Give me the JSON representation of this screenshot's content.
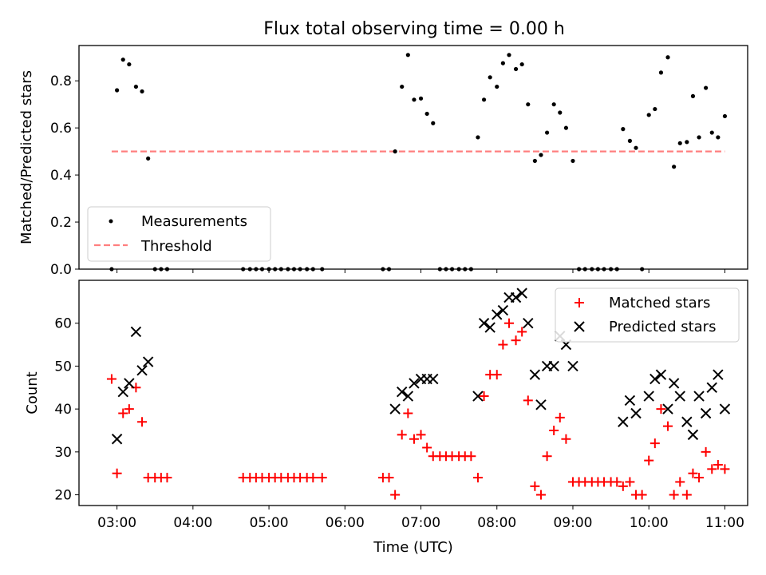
{
  "chart_data": [
    {
      "type": "scatter",
      "title": "Flux total observing time = 0.00 h",
      "xlabel": "",
      "ylabel": "Matched/Predicted stars",
      "ylim": [
        0,
        0.95
      ],
      "yticks": [
        0.0,
        0.2,
        0.4,
        0.6,
        0.8
      ],
      "ytick_labels": [
        "0.0",
        "0.2",
        "0.4",
        "0.6",
        "0.8"
      ],
      "legend_position": "lower-left",
      "series": [
        {
          "name": "Measurements",
          "color": "#000000",
          "marker": "dot",
          "points": [
            [
              2.93,
              0
            ],
            [
              3.0,
              0.76
            ],
            [
              3.08,
              0.89
            ],
            [
              3.16,
              0.87
            ],
            [
              3.25,
              0.775
            ],
            [
              3.33,
              0.755
            ],
            [
              3.41,
              0.47
            ],
            [
              3.5,
              0
            ],
            [
              3.58,
              0
            ],
            [
              3.66,
              0
            ],
            [
              4.66,
              0
            ],
            [
              4.75,
              0
            ],
            [
              4.83,
              0
            ],
            [
              4.91,
              0
            ],
            [
              5.0,
              0
            ],
            [
              5.08,
              0
            ],
            [
              5.16,
              0
            ],
            [
              5.25,
              0
            ],
            [
              5.33,
              0
            ],
            [
              5.41,
              0
            ],
            [
              5.5,
              0
            ],
            [
              5.58,
              0
            ],
            [
              5.7,
              0
            ],
            [
              6.5,
              0
            ],
            [
              6.58,
              0
            ],
            [
              6.66,
              0.5
            ],
            [
              6.75,
              0.775
            ],
            [
              6.83,
              0.91
            ],
            [
              6.91,
              0.72
            ],
            [
              7.0,
              0.725
            ],
            [
              7.08,
              0.66
            ],
            [
              7.16,
              0.62
            ],
            [
              7.25,
              0
            ],
            [
              7.33,
              0
            ],
            [
              7.41,
              0
            ],
            [
              7.5,
              0
            ],
            [
              7.58,
              0
            ],
            [
              7.66,
              0
            ],
            [
              7.75,
              0.56
            ],
            [
              7.83,
              0.72
            ],
            [
              7.91,
              0.815
            ],
            [
              8.0,
              0.775
            ],
            [
              8.08,
              0.875
            ],
            [
              8.16,
              0.91
            ],
            [
              8.25,
              0.85
            ],
            [
              8.33,
              0.87
            ],
            [
              8.41,
              0.7
            ],
            [
              8.5,
              0.46
            ],
            [
              8.58,
              0.485
            ],
            [
              8.66,
              0.58
            ],
            [
              8.75,
              0.7
            ],
            [
              8.83,
              0.665
            ],
            [
              8.91,
              0.6
            ],
            [
              9.0,
              0.46
            ],
            [
              9.08,
              0
            ],
            [
              9.16,
              0
            ],
            [
              9.25,
              0
            ],
            [
              9.33,
              0
            ],
            [
              9.41,
              0
            ],
            [
              9.5,
              0
            ],
            [
              9.58,
              0
            ],
            [
              9.66,
              0.595
            ],
            [
              9.75,
              0.545
            ],
            [
              9.83,
              0.515
            ],
            [
              9.91,
              0
            ],
            [
              10.0,
              0.655
            ],
            [
              10.08,
              0.68
            ],
            [
              10.16,
              0.835
            ],
            [
              10.25,
              0.9
            ],
            [
              10.33,
              0.435
            ],
            [
              10.41,
              0.535
            ],
            [
              10.5,
              0.54
            ],
            [
              10.58,
              0.735
            ],
            [
              10.66,
              0.56
            ],
            [
              10.75,
              0.77
            ],
            [
              10.83,
              0.58
            ],
            [
              10.91,
              0.56
            ],
            [
              11.0,
              0.65
            ]
          ]
        },
        {
          "name": "Threshold",
          "color": "#ff7f7f",
          "line_style": "dashed",
          "points": [
            [
              2.93,
              0.5
            ],
            [
              11.0,
              0.5
            ]
          ]
        }
      ]
    },
    {
      "type": "scatter",
      "title": "",
      "xlabel": "Time (UTC)",
      "ylabel": "Count",
      "xlim": [
        2.5,
        11.3
      ],
      "ylim": [
        17.5,
        70
      ],
      "xticks": [
        3,
        4,
        5,
        6,
        7,
        8,
        9,
        10,
        11
      ],
      "xtick_labels": [
        "03:00",
        "04:00",
        "05:00",
        "06:00",
        "07:00",
        "08:00",
        "09:00",
        "10:00",
        "11:00"
      ],
      "yticks": [
        20,
        30,
        40,
        50,
        60
      ],
      "ytick_labels": [
        "20",
        "30",
        "40",
        "50",
        "60"
      ],
      "legend_position": "top-right",
      "series": [
        {
          "name": "Matched stars",
          "color": "#ff0000",
          "marker": "plus",
          "points": [
            [
              2.93,
              47
            ],
            [
              3.0,
              25
            ],
            [
              3.08,
              39
            ],
            [
              3.16,
              40
            ],
            [
              3.25,
              45
            ],
            [
              3.33,
              37
            ],
            [
              3.41,
              24
            ],
            [
              3.5,
              24
            ],
            [
              3.58,
              24
            ],
            [
              3.66,
              24
            ],
            [
              4.66,
              24
            ],
            [
              4.75,
              24
            ],
            [
              4.83,
              24
            ],
            [
              4.91,
              24
            ],
            [
              5.0,
              24
            ],
            [
              5.08,
              24
            ],
            [
              5.16,
              24
            ],
            [
              5.25,
              24
            ],
            [
              5.33,
              24
            ],
            [
              5.41,
              24
            ],
            [
              5.5,
              24
            ],
            [
              5.58,
              24
            ],
            [
              5.7,
              24
            ],
            [
              6.5,
              24
            ],
            [
              6.58,
              24
            ],
            [
              6.66,
              20
            ],
            [
              6.75,
              34
            ],
            [
              6.83,
              39
            ],
            [
              6.91,
              33
            ],
            [
              7.0,
              34
            ],
            [
              7.08,
              31
            ],
            [
              7.16,
              29
            ],
            [
              7.25,
              29
            ],
            [
              7.33,
              29
            ],
            [
              7.41,
              29
            ],
            [
              7.5,
              29
            ],
            [
              7.58,
              29
            ],
            [
              7.66,
              29
            ],
            [
              7.75,
              24
            ],
            [
              7.83,
              43
            ],
            [
              7.91,
              48
            ],
            [
              8.0,
              48
            ],
            [
              8.08,
              55
            ],
            [
              8.16,
              60
            ],
            [
              8.25,
              56
            ],
            [
              8.33,
              58
            ],
            [
              8.41,
              42
            ],
            [
              8.5,
              22
            ],
            [
              8.58,
              20
            ],
            [
              8.66,
              29
            ],
            [
              8.75,
              35
            ],
            [
              8.83,
              38
            ],
            [
              8.91,
              33
            ],
            [
              9.0,
              23
            ],
            [
              9.08,
              23
            ],
            [
              9.16,
              23
            ],
            [
              9.25,
              23
            ],
            [
              9.33,
              23
            ],
            [
              9.41,
              23
            ],
            [
              9.5,
              23
            ],
            [
              9.58,
              23
            ],
            [
              9.66,
              22
            ],
            [
              9.75,
              23
            ],
            [
              9.83,
              20
            ],
            [
              9.91,
              20
            ],
            [
              10.0,
              28
            ],
            [
              10.08,
              32
            ],
            [
              10.16,
              40
            ],
            [
              10.25,
              36
            ],
            [
              10.33,
              20
            ],
            [
              10.41,
              23
            ],
            [
              10.5,
              20
            ],
            [
              10.58,
              25
            ],
            [
              10.66,
              24
            ],
            [
              10.75,
              30
            ],
            [
              10.83,
              26
            ],
            [
              10.91,
              27
            ],
            [
              11.0,
              26
            ]
          ]
        },
        {
          "name": "Predicted stars",
          "color": "#000000",
          "marker": "x",
          "points": [
            [
              3.0,
              33
            ],
            [
              3.08,
              44
            ],
            [
              3.16,
              46
            ],
            [
              3.25,
              58
            ],
            [
              3.33,
              49
            ],
            [
              3.41,
              51
            ],
            [
              6.66,
              40
            ],
            [
              6.75,
              44
            ],
            [
              6.83,
              43
            ],
            [
              6.91,
              46
            ],
            [
              7.0,
              47
            ],
            [
              7.08,
              47
            ],
            [
              7.16,
              47
            ],
            [
              7.75,
              43
            ],
            [
              7.83,
              60
            ],
            [
              7.91,
              59
            ],
            [
              8.0,
              62
            ],
            [
              8.08,
              63
            ],
            [
              8.16,
              66
            ],
            [
              8.25,
              66
            ],
            [
              8.33,
              67
            ],
            [
              8.41,
              60
            ],
            [
              8.5,
              48
            ],
            [
              8.58,
              41
            ],
            [
              8.66,
              50
            ],
            [
              8.75,
              50
            ],
            [
              8.83,
              57
            ],
            [
              8.91,
              55
            ],
            [
              9.0,
              50
            ],
            [
              9.66,
              37
            ],
            [
              9.75,
              42
            ],
            [
              9.83,
              39
            ],
            [
              10.0,
              43
            ],
            [
              10.08,
              47
            ],
            [
              10.16,
              48
            ],
            [
              10.25,
              40
            ],
            [
              10.33,
              46
            ],
            [
              10.41,
              43
            ],
            [
              10.5,
              37
            ],
            [
              10.58,
              34
            ],
            [
              10.66,
              43
            ],
            [
              10.75,
              39
            ],
            [
              10.83,
              45
            ],
            [
              10.91,
              48
            ],
            [
              11.0,
              40
            ]
          ]
        }
      ]
    }
  ]
}
